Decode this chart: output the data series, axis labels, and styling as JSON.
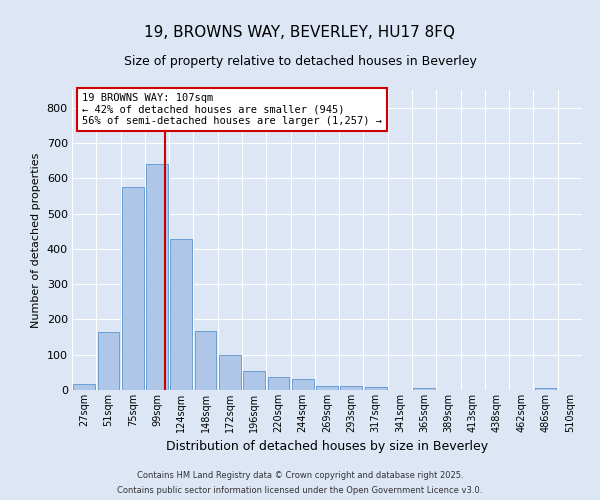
{
  "title1": "19, BROWNS WAY, BEVERLEY, HU17 8FQ",
  "title2": "Size of property relative to detached houses in Beverley",
  "xlabel": "Distribution of detached houses by size in Beverley",
  "ylabel": "Number of detached properties",
  "bar_labels": [
    "27sqm",
    "51sqm",
    "75sqm",
    "99sqm",
    "124sqm",
    "148sqm",
    "172sqm",
    "196sqm",
    "220sqm",
    "244sqm",
    "269sqm",
    "293sqm",
    "317sqm",
    "341sqm",
    "365sqm",
    "389sqm",
    "413sqm",
    "438sqm",
    "462sqm",
    "486sqm",
    "510sqm"
  ],
  "bar_heights": [
    17,
    165,
    575,
    640,
    428,
    168,
    100,
    55,
    38,
    30,
    12,
    10,
    8,
    0,
    7,
    0,
    0,
    0,
    0,
    5,
    0
  ],
  "bar_color": "#aec6e8",
  "bar_edge_color": "#6b9fd4",
  "bg_color": "#dce6f5",
  "grid_color": "#ffffff",
  "annotation_text": "19 BROWNS WAY: 107sqm\n← 42% of detached houses are smaller (945)\n56% of semi-detached houses are larger (1,257) →",
  "annotation_box_color": "#ffffff",
  "annotation_border_color": "#cc0000",
  "ylim": [
    0,
    850
  ],
  "yticks": [
    0,
    100,
    200,
    300,
    400,
    500,
    600,
    700,
    800
  ],
  "footer1": "Contains HM Land Registry data © Crown copyright and database right 2025.",
  "footer2": "Contains public sector information licensed under the Open Government Licence v3.0.",
  "property_sqm": 107,
  "bin_edges": [
    27,
    51,
    75,
    99,
    124,
    148,
    172,
    196,
    220,
    244,
    269,
    293,
    317,
    341,
    365,
    389,
    413,
    438,
    462,
    486,
    510
  ]
}
